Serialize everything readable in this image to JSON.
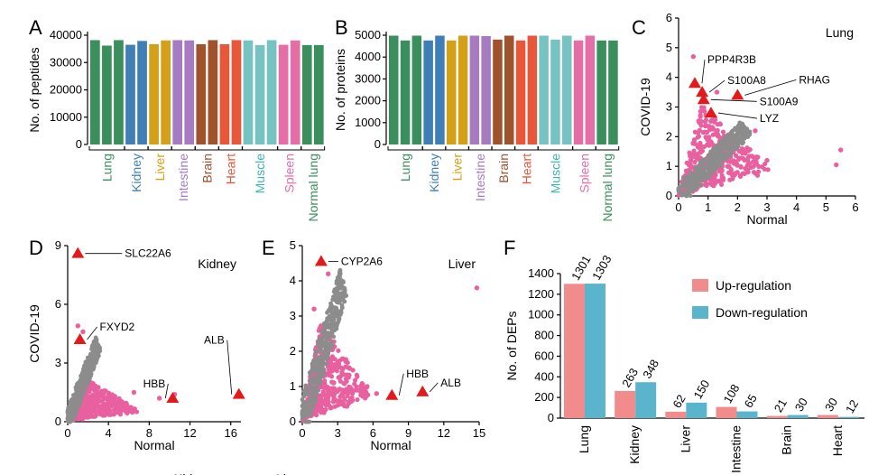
{
  "colors": {
    "pink": "#e8609f",
    "gray": "#8c8c8c",
    "marker": "#e31a1c",
    "up": "#f28b8b",
    "down": "#5ab4cc"
  },
  "chart_data": [
    {
      "panel": "A",
      "type": "bar",
      "ylabel": "No. of peptides",
      "ylim": [
        0,
        40000
      ],
      "yticks": [
        0,
        10000,
        20000,
        30000,
        40000
      ],
      "bars": [
        {
          "value": 38200,
          "color": "#3a8f5c"
        },
        {
          "value": 36200,
          "color": "#3a8f5c"
        },
        {
          "value": 38200,
          "color": "#3a8f5c"
        },
        {
          "value": 36500,
          "color": "#3f7fb5"
        },
        {
          "value": 37900,
          "color": "#3f7fb5"
        },
        {
          "value": 36700,
          "color": "#d4a017"
        },
        {
          "value": 38100,
          "color": "#d4a017"
        },
        {
          "value": 38200,
          "color": "#a67bc2"
        },
        {
          "value": 38100,
          "color": "#a67bc2"
        },
        {
          "value": 36700,
          "color": "#a0522d"
        },
        {
          "value": 38200,
          "color": "#a0522d"
        },
        {
          "value": 36700,
          "color": "#e8573a"
        },
        {
          "value": 38200,
          "color": "#e8573a"
        },
        {
          "value": 38100,
          "color": "#77c2c2"
        },
        {
          "value": 36400,
          "color": "#77c2c2"
        },
        {
          "value": 38200,
          "color": "#77c2c2"
        },
        {
          "value": 36500,
          "color": "#e56ea7"
        },
        {
          "value": 38100,
          "color": "#e56ea7"
        },
        {
          "value": 36400,
          "color": "#3a8f5c"
        },
        {
          "value": 36400,
          "color": "#3a8f5c"
        }
      ],
      "groups": [
        {
          "label": "Lung",
          "from": 0,
          "to": 2,
          "color": "#3a8f5c"
        },
        {
          "label": "Kidney",
          "from": 3,
          "to": 4,
          "color": "#3f7fb5"
        },
        {
          "label": "Liver",
          "from": 5,
          "to": 6,
          "color": "#d4a017"
        },
        {
          "label": "Intestine",
          "from": 7,
          "to": 8,
          "color": "#a67bc2"
        },
        {
          "label": "Brain",
          "from": 9,
          "to": 10,
          "color": "#a0522d"
        },
        {
          "label": "Heart",
          "from": 11,
          "to": 12,
          "color": "#e8573a"
        },
        {
          "label": "Muscle",
          "from": 13,
          "to": 15,
          "color": "#3bb3b3"
        },
        {
          "label": "Spleen",
          "from": 16,
          "to": 17,
          "color": "#e56ea7"
        },
        {
          "label": "Normal lung",
          "from": 18,
          "to": 19,
          "color": "#3a8f5c"
        }
      ]
    },
    {
      "panel": "B",
      "type": "bar",
      "ylabel": "No. of proteins",
      "ylim": [
        0,
        5000
      ],
      "yticks": [
        0,
        1000,
        2000,
        3000,
        4000,
        5000
      ],
      "bars": [
        {
          "value": 4980,
          "color": "#3a8f5c"
        },
        {
          "value": 4760,
          "color": "#3a8f5c"
        },
        {
          "value": 4980,
          "color": "#3a8f5c"
        },
        {
          "value": 4760,
          "color": "#3f7fb5"
        },
        {
          "value": 4980,
          "color": "#3f7fb5"
        },
        {
          "value": 4760,
          "color": "#d4a017"
        },
        {
          "value": 4980,
          "color": "#d4a017"
        },
        {
          "value": 4980,
          "color": "#a67bc2"
        },
        {
          "value": 4960,
          "color": "#a67bc2"
        },
        {
          "value": 4800,
          "color": "#a0522d"
        },
        {
          "value": 4980,
          "color": "#a0522d"
        },
        {
          "value": 4760,
          "color": "#e8573a"
        },
        {
          "value": 4980,
          "color": "#e8573a"
        },
        {
          "value": 4980,
          "color": "#77c2c2"
        },
        {
          "value": 4800,
          "color": "#77c2c2"
        },
        {
          "value": 4980,
          "color": "#77c2c2"
        },
        {
          "value": 4760,
          "color": "#e56ea7"
        },
        {
          "value": 4980,
          "color": "#e56ea7"
        },
        {
          "value": 4760,
          "color": "#3a8f5c"
        },
        {
          "value": 4760,
          "color": "#3a8f5c"
        }
      ],
      "groups": [
        {
          "label": "Lung",
          "from": 0,
          "to": 2,
          "color": "#3a8f5c"
        },
        {
          "label": "Kidney",
          "from": 3,
          "to": 4,
          "color": "#3f7fb5"
        },
        {
          "label": "Liver",
          "from": 5,
          "to": 6,
          "color": "#d4a017"
        },
        {
          "label": "Intestine",
          "from": 7,
          "to": 8,
          "color": "#a67bc2"
        },
        {
          "label": "Brain",
          "from": 9,
          "to": 10,
          "color": "#a0522d"
        },
        {
          "label": "Heart",
          "from": 11,
          "to": 12,
          "color": "#e8573a"
        },
        {
          "label": "Muscle",
          "from": 13,
          "to": 15,
          "color": "#3bb3b3"
        },
        {
          "label": "Spleen",
          "from": 16,
          "to": 17,
          "color": "#e56ea7"
        },
        {
          "label": "Normal lung",
          "from": 18,
          "to": 19,
          "color": "#3a8f5c"
        }
      ]
    },
    {
      "panel": "C",
      "type": "scatter",
      "title": "Lung",
      "title_color": "#3a8f5c",
      "xlabel": "Normal",
      "ylabel": "COVID-19",
      "xlim": [
        0,
        6
      ],
      "ylim": [
        0,
        6
      ],
      "xticks": [
        0,
        1,
        2,
        3,
        4,
        5,
        6
      ],
      "yticks": [
        0,
        1,
        2,
        3,
        4,
        5,
        6
      ],
      "cloud": {
        "gray_max_x": 2.3,
        "gray_max_y": 2.3,
        "pink_max_x": 3.2,
        "pink_max_y": 2.9
      },
      "outliers": [
        [
          5.5,
          1.55
        ],
        [
          5.35,
          1.05
        ],
        [
          0.5,
          4.7
        ],
        [
          1.3,
          3.5
        ],
        [
          2.6,
          2.2
        ],
        [
          3.0,
          1.2
        ]
      ],
      "highlights": [
        {
          "label": "PPP4R3B",
          "x": 0.55,
          "y": 3.8
        },
        {
          "label": "S100A8",
          "x": 0.8,
          "y": 3.5
        },
        {
          "label": "RHAG",
          "x": 2.0,
          "y": 3.4
        },
        {
          "label": "S100A9",
          "x": 0.85,
          "y": 3.25
        },
        {
          "label": "LYZ",
          "x": 1.1,
          "y": 2.8
        }
      ]
    },
    {
      "panel": "D",
      "type": "scatter",
      "title": "Kidney",
      "title_color": "#3f7fb5",
      "xlabel": "Normal",
      "ylabel": "COVID-19",
      "xlim": [
        0,
        17
      ],
      "ylim": [
        0,
        9
      ],
      "xticks": [
        0,
        4,
        8,
        12,
        16
      ],
      "yticks": [
        0,
        3,
        6,
        9
      ],
      "cloud": {
        "gray_max_x": 3.0,
        "gray_max_y": 4.0,
        "pink_max_x": 7.0,
        "pink_max_y": 2.0
      },
      "outliers": [
        [
          1.0,
          4.9
        ],
        [
          1.5,
          4.6
        ],
        [
          9.0,
          1.2
        ],
        [
          10.5,
          1.4
        ],
        [
          6.5,
          1.5
        ]
      ],
      "highlights": [
        {
          "label": "SLC22A6",
          "x": 1.0,
          "y": 8.6
        },
        {
          "label": "FXYD2",
          "x": 1.2,
          "y": 4.2
        },
        {
          "label": "ALB",
          "x": 16.8,
          "y": 1.4
        },
        {
          "label": "HBB",
          "x": 10.3,
          "y": 1.2
        }
      ]
    },
    {
      "panel": "E",
      "type": "scatter",
      "title": "Liver",
      "title_color": "#d4a017",
      "xlabel": "Normal",
      "ylabel": "",
      "xlim": [
        0,
        15
      ],
      "ylim": [
        0,
        5
      ],
      "xticks": [
        0,
        3,
        6,
        9,
        12,
        15
      ],
      "yticks": [
        0,
        1,
        2,
        3,
        4,
        5
      ],
      "cloud": {
        "gray_max_x": 3.5,
        "gray_max_y": 4.0,
        "pink_max_x": 6.0,
        "pink_max_y": 2.6
      },
      "outliers": [
        [
          14.8,
          3.8
        ],
        [
          2.2,
          4.2
        ],
        [
          1.0,
          3.2
        ],
        [
          6.3,
          0.8
        ],
        [
          5.5,
          1.0
        ]
      ],
      "highlights": [
        {
          "label": "CYP2A6",
          "x": 1.6,
          "y": 4.55
        },
        {
          "label": "HBB",
          "x": 7.6,
          "y": 0.75
        },
        {
          "label": "ALB",
          "x": 10.2,
          "y": 0.85
        }
      ]
    },
    {
      "panel": "F",
      "type": "bar",
      "ylabel": "No. of DEPs",
      "ylim": [
        0,
        1400
      ],
      "yticks": [
        0,
        200,
        400,
        600,
        800,
        1000,
        1200,
        1400
      ],
      "categories": [
        "Lung",
        "Kidney",
        "Liver",
        "Intestine",
        "Brain",
        "Heart"
      ],
      "series": [
        {
          "name": "Up-regulation",
          "values": [
            1301,
            263,
            62,
            108,
            21,
            30
          ],
          "color": "#f28b8b"
        },
        {
          "name": "Down-regulation",
          "values": [
            1303,
            348,
            150,
            65,
            30,
            12
          ],
          "color": "#5ab4cc"
        }
      ],
      "legend": "top-right"
    }
  ],
  "footer": [
    {
      "text": "Kidney",
      "color": "#3f7fb5"
    },
    {
      "text": "Liver",
      "color": "#d4a017"
    }
  ]
}
